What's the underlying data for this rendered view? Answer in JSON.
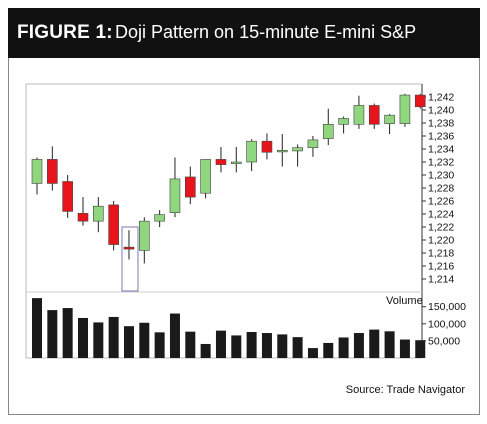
{
  "header": {
    "figure_label": "FIGURE 1:",
    "title": "Doji Pattern on 15-minute E-mini S&P"
  },
  "source": "Source: Trade Navigator",
  "colors": {
    "up": "#8fd67f",
    "down": "#e8141c",
    "volume": "#1a1a1a",
    "highlight_box": "#7a7ab0"
  },
  "chart_data": {
    "type": "candlestick",
    "price_axis": {
      "ylim": [
        1212,
        1244
      ],
      "ticks": [
        "1,214",
        "1,216",
        "1,218",
        "1,220",
        "1,222",
        "1,224",
        "1,226",
        "1,228",
        "1,230",
        "1,232",
        "1,234",
        "1,236",
        "1,238",
        "1,240",
        "1,242"
      ]
    },
    "volume_axis": {
      "label": "Volume",
      "ylim": [
        0,
        190000
      ],
      "ticks": [
        "50,000",
        "100,000",
        "150,000"
      ]
    },
    "candles": [
      {
        "o": 1228.7,
        "h": 1232.7,
        "l": 1227.0,
        "c": 1232.4,
        "v": 175000
      },
      {
        "o": 1232.4,
        "h": 1234.4,
        "l": 1227.6,
        "c": 1228.7,
        "v": 140000
      },
      {
        "o": 1229.0,
        "h": 1230.0,
        "l": 1223.4,
        "c": 1224.4,
        "v": 146000
      },
      {
        "o": 1224.1,
        "h": 1226.6,
        "l": 1222.2,
        "c": 1222.9,
        "v": 117000
      },
      {
        "o": 1222.9,
        "h": 1226.6,
        "l": 1221.2,
        "c": 1225.2,
        "v": 104000
      },
      {
        "o": 1225.4,
        "h": 1226.0,
        "l": 1218.4,
        "c": 1219.3,
        "v": 120000
      },
      {
        "o": 1218.9,
        "h": 1221.5,
        "l": 1217.0,
        "c": 1218.6,
        "v": 93000
      },
      {
        "o": 1218.4,
        "h": 1223.5,
        "l": 1216.4,
        "c": 1222.9,
        "v": 103000
      },
      {
        "o": 1222.9,
        "h": 1224.6,
        "l": 1222.0,
        "c": 1223.9,
        "v": 75000
      },
      {
        "o": 1224.2,
        "h": 1232.7,
        "l": 1223.5,
        "c": 1229.4,
        "v": 130000
      },
      {
        "o": 1229.7,
        "h": 1231.3,
        "l": 1225.5,
        "c": 1226.6,
        "v": 77000
      },
      {
        "o": 1227.2,
        "h": 1232.4,
        "l": 1226.4,
        "c": 1232.4,
        "v": 41000
      },
      {
        "o": 1232.4,
        "h": 1234.3,
        "l": 1230.4,
        "c": 1231.6,
        "v": 80000
      },
      {
        "o": 1232.0,
        "h": 1234.3,
        "l": 1230.4,
        "c": 1232.0,
        "v": 66000
      },
      {
        "o": 1232.0,
        "h": 1235.5,
        "l": 1230.6,
        "c": 1235.2,
        "v": 76000
      },
      {
        "o": 1235.2,
        "h": 1236.4,
        "l": 1232.4,
        "c": 1233.5,
        "v": 73000
      },
      {
        "o": 1233.8,
        "h": 1236.3,
        "l": 1231.3,
        "c": 1233.8,
        "v": 69000
      },
      {
        "o": 1233.7,
        "h": 1234.7,
        "l": 1231.3,
        "c": 1234.2,
        "v": 61000
      },
      {
        "o": 1234.2,
        "h": 1236.0,
        "l": 1232.8,
        "c": 1235.4,
        "v": 29000
      },
      {
        "o": 1235.6,
        "h": 1240.2,
        "l": 1234.6,
        "c": 1237.8,
        "v": 44000
      },
      {
        "o": 1237.8,
        "h": 1239.0,
        "l": 1236.4,
        "c": 1238.7,
        "v": 60000
      },
      {
        "o": 1237.8,
        "h": 1242.2,
        "l": 1237.1,
        "c": 1240.7,
        "v": 73000
      },
      {
        "o": 1240.7,
        "h": 1241.0,
        "l": 1237.1,
        "c": 1237.8,
        "v": 83000
      },
      {
        "o": 1237.9,
        "h": 1239.4,
        "l": 1236.3,
        "c": 1239.2,
        "v": 78000
      },
      {
        "o": 1237.9,
        "h": 1242.5,
        "l": 1237.4,
        "c": 1242.3,
        "v": 54000
      },
      {
        "o": 1242.3,
        "h": 1242.5,
        "l": 1240.2,
        "c": 1240.5,
        "v": 52000
      }
    ],
    "highlight_index": 6,
    "grid": false
  }
}
